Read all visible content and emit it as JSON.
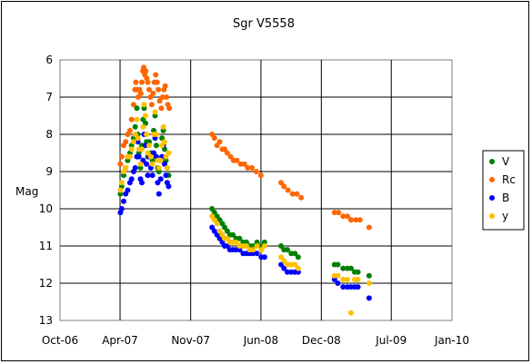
{
  "chart_data": {
    "type": "scatter",
    "title": "Sgr V5558",
    "xlabel": "",
    "ylabel": "Mag",
    "x_tick_labels": [
      "Oct-06",
      "Apr-07",
      "Nov-07",
      "Jun-08",
      "Dec-08",
      "Jul-09",
      "Jan-10"
    ],
    "x_ticks": [
      "2006-10-01",
      "2007-04-01",
      "2007-11-01",
      "2008-06-01",
      "2008-12-01",
      "2009-07-01",
      "2010-01-01"
    ],
    "xlim": [
      "2006-10-01",
      "2010-01-01"
    ],
    "y_tick_labels": [
      "6",
      "7",
      "8",
      "9",
      "10",
      "11",
      "12",
      "13"
    ],
    "ylim": [
      13,
      6
    ],
    "y_inverted": true,
    "grid": true,
    "legend_position": "right",
    "series": [
      {
        "name": "V",
        "color": "#008000",
        "points": [
          [
            "2007-04-02",
            9.6
          ],
          [
            "2007-04-06",
            9.4
          ],
          [
            "2007-04-12",
            9.1
          ],
          [
            "2007-04-18",
            8.9
          ],
          [
            "2007-04-24",
            8.7
          ],
          [
            "2007-05-01",
            8.5
          ],
          [
            "2007-05-06",
            8.3
          ],
          [
            "2007-05-12",
            8.1
          ],
          [
            "2007-05-17",
            7.8
          ],
          [
            "2007-05-22",
            7.3
          ],
          [
            "2007-05-25",
            8.0
          ],
          [
            "2007-05-28",
            8.5
          ],
          [
            "2007-06-02",
            8.9
          ],
          [
            "2007-06-06",
            8.3
          ],
          [
            "2007-06-10",
            7.6
          ],
          [
            "2007-06-13",
            7.3
          ],
          [
            "2007-06-17",
            7.7
          ],
          [
            "2007-06-20",
            8.2
          ],
          [
            "2007-06-24",
            8.6
          ],
          [
            "2007-06-28",
            8.2
          ],
          [
            "2007-07-03",
            8.5
          ],
          [
            "2007-07-08",
            8.7
          ],
          [
            "2007-07-12",
            7.9
          ],
          [
            "2007-07-16",
            7.5
          ],
          [
            "2007-07-20",
            8.3
          ],
          [
            "2007-07-24",
            8.9
          ],
          [
            "2007-07-28",
            9.0
          ],
          [
            "2007-08-02",
            8.7
          ],
          [
            "2007-08-06",
            8.1
          ],
          [
            "2007-08-10",
            7.9
          ],
          [
            "2007-08-14",
            8.4
          ],
          [
            "2007-08-18",
            8.7
          ],
          [
            "2007-08-22",
            8.9
          ],
          [
            "2007-08-26",
            9.1
          ],
          [
            "2008-01-05",
            10.0
          ],
          [
            "2008-01-12",
            10.1
          ],
          [
            "2008-01-20",
            10.2
          ],
          [
            "2008-01-28",
            10.3
          ],
          [
            "2008-02-05",
            10.4
          ],
          [
            "2008-02-12",
            10.5
          ],
          [
            "2008-02-20",
            10.6
          ],
          [
            "2008-02-28",
            10.7
          ],
          [
            "2008-03-08",
            10.7
          ],
          [
            "2008-03-18",
            10.8
          ],
          [
            "2008-03-28",
            10.8
          ],
          [
            "2008-04-08",
            10.9
          ],
          [
            "2008-04-18",
            10.9
          ],
          [
            "2008-04-28",
            11.0
          ],
          [
            "2008-05-08",
            11.0
          ],
          [
            "2008-05-20",
            10.9
          ],
          [
            "2008-06-02",
            11.0
          ],
          [
            "2008-06-12",
            10.9
          ],
          [
            "2008-08-01",
            11.0
          ],
          [
            "2008-08-10",
            11.1
          ],
          [
            "2008-08-20",
            11.1
          ],
          [
            "2008-09-01",
            11.2
          ],
          [
            "2008-09-12",
            11.2
          ],
          [
            "2008-09-22",
            11.3
          ],
          [
            "2009-01-10",
            11.5
          ],
          [
            "2009-01-20",
            11.5
          ],
          [
            "2009-02-05",
            11.6
          ],
          [
            "2009-02-18",
            11.6
          ],
          [
            "2009-03-01",
            11.6
          ],
          [
            "2009-03-12",
            11.7
          ],
          [
            "2009-03-22",
            11.7
          ],
          [
            "2009-04-25",
            11.8
          ]
        ]
      },
      {
        "name": "Rc",
        "color": "#ff6600",
        "points": [
          [
            "2007-04-02",
            8.8
          ],
          [
            "2007-04-06",
            8.6
          ],
          [
            "2007-04-12",
            8.3
          ],
          [
            "2007-04-18",
            8.2
          ],
          [
            "2007-04-24",
            8.0
          ],
          [
            "2007-05-01",
            7.9
          ],
          [
            "2007-05-06",
            7.6
          ],
          [
            "2007-05-12",
            7.2
          ],
          [
            "2007-05-16",
            6.8
          ],
          [
            "2007-05-19",
            6.6
          ],
          [
            "2007-05-22",
            6.8
          ],
          [
            "2007-05-26",
            7.0
          ],
          [
            "2007-05-30",
            6.8
          ],
          [
            "2007-06-03",
            6.9
          ],
          [
            "2007-06-06",
            6.6
          ],
          [
            "2007-06-09",
            6.3
          ],
          [
            "2007-06-12",
            6.2
          ],
          [
            "2007-06-15",
            6.4
          ],
          [
            "2007-06-18",
            6.3
          ],
          [
            "2007-06-21",
            6.5
          ],
          [
            "2007-06-24",
            6.6
          ],
          [
            "2007-06-28",
            6.8
          ],
          [
            "2007-07-02",
            7.0
          ],
          [
            "2007-07-06",
            7.2
          ],
          [
            "2007-07-10",
            6.9
          ],
          [
            "2007-07-14",
            6.6
          ],
          [
            "2007-07-18",
            6.4
          ],
          [
            "2007-07-22",
            6.6
          ],
          [
            "2007-07-26",
            6.8
          ],
          [
            "2007-07-30",
            7.1
          ],
          [
            "2007-08-04",
            7.3
          ],
          [
            "2007-08-08",
            7.0
          ],
          [
            "2007-08-12",
            6.8
          ],
          [
            "2007-08-16",
            6.7
          ],
          [
            "2007-08-20",
            7.0
          ],
          [
            "2007-08-24",
            7.2
          ],
          [
            "2007-08-28",
            7.3
          ],
          [
            "2008-01-05",
            8.0
          ],
          [
            "2008-01-12",
            8.1
          ],
          [
            "2008-01-20",
            8.3
          ],
          [
            "2008-01-28",
            8.2
          ],
          [
            "2008-02-05",
            8.4
          ],
          [
            "2008-02-12",
            8.4
          ],
          [
            "2008-02-20",
            8.5
          ],
          [
            "2008-03-01",
            8.6
          ],
          [
            "2008-03-10",
            8.7
          ],
          [
            "2008-03-20",
            8.7
          ],
          [
            "2008-04-01",
            8.8
          ],
          [
            "2008-04-12",
            8.8
          ],
          [
            "2008-04-22",
            8.9
          ],
          [
            "2008-05-05",
            8.9
          ],
          [
            "2008-05-18",
            9.0
          ],
          [
            "2008-06-01",
            9.1
          ],
          [
            "2008-08-01",
            9.3
          ],
          [
            "2008-08-10",
            9.4
          ],
          [
            "2008-08-22",
            9.5
          ],
          [
            "2008-09-05",
            9.6
          ],
          [
            "2008-09-18",
            9.6
          ],
          [
            "2008-10-01",
            9.7
          ],
          [
            "2009-01-10",
            10.1
          ],
          [
            "2009-01-22",
            10.1
          ],
          [
            "2009-02-05",
            10.2
          ],
          [
            "2009-02-18",
            10.2
          ],
          [
            "2009-03-01",
            10.3
          ],
          [
            "2009-03-15",
            10.3
          ],
          [
            "2009-03-28",
            10.3
          ],
          [
            "2009-04-25",
            10.5
          ]
        ]
      },
      {
        "name": "B",
        "color": "#0000ff",
        "points": [
          [
            "2007-04-02",
            10.1
          ],
          [
            "2007-04-06",
            10.0
          ],
          [
            "2007-04-12",
            9.8
          ],
          [
            "2007-04-18",
            9.6
          ],
          [
            "2007-04-24",
            9.5
          ],
          [
            "2007-05-01",
            9.3
          ],
          [
            "2007-05-06",
            9.2
          ],
          [
            "2007-05-12",
            9.0
          ],
          [
            "2007-05-17",
            8.9
          ],
          [
            "2007-05-22",
            8.6
          ],
          [
            "2007-05-25",
            8.2
          ],
          [
            "2007-05-28",
            8.6
          ],
          [
            "2007-06-02",
            9.2
          ],
          [
            "2007-06-06",
            9.3
          ],
          [
            "2007-06-10",
            8.7
          ],
          [
            "2007-06-13",
            8.0
          ],
          [
            "2007-06-17",
            8.3
          ],
          [
            "2007-06-20",
            8.8
          ],
          [
            "2007-06-24",
            9.1
          ],
          [
            "2007-06-28",
            8.6
          ],
          [
            "2007-07-03",
            8.9
          ],
          [
            "2007-07-08",
            9.1
          ],
          [
            "2007-07-12",
            8.5
          ],
          [
            "2007-07-16",
            8.1
          ],
          [
            "2007-07-20",
            8.6
          ],
          [
            "2007-07-24",
            9.3
          ],
          [
            "2007-07-28",
            9.6
          ],
          [
            "2007-08-02",
            9.2
          ],
          [
            "2007-08-06",
            8.6
          ],
          [
            "2007-08-10",
            8.3
          ],
          [
            "2007-08-14",
            8.8
          ],
          [
            "2007-08-18",
            9.1
          ],
          [
            "2007-08-22",
            9.3
          ],
          [
            "2007-08-26",
            9.4
          ],
          [
            "2008-01-05",
            10.5
          ],
          [
            "2008-01-12",
            10.6
          ],
          [
            "2008-01-20",
            10.7
          ],
          [
            "2008-01-28",
            10.8
          ],
          [
            "2008-02-05",
            10.9
          ],
          [
            "2008-02-12",
            11.0
          ],
          [
            "2008-02-20",
            11.0
          ],
          [
            "2008-02-28",
            11.1
          ],
          [
            "2008-03-08",
            11.1
          ],
          [
            "2008-03-18",
            11.1
          ],
          [
            "2008-03-28",
            11.1
          ],
          [
            "2008-04-08",
            11.2
          ],
          [
            "2008-04-18",
            11.2
          ],
          [
            "2008-04-28",
            11.2
          ],
          [
            "2008-05-08",
            11.2
          ],
          [
            "2008-05-20",
            11.2
          ],
          [
            "2008-06-02",
            11.3
          ],
          [
            "2008-06-12",
            11.3
          ],
          [
            "2008-08-01",
            11.5
          ],
          [
            "2008-08-10",
            11.6
          ],
          [
            "2008-08-20",
            11.7
          ],
          [
            "2008-09-01",
            11.7
          ],
          [
            "2008-09-12",
            11.7
          ],
          [
            "2008-09-22",
            11.7
          ],
          [
            "2009-01-10",
            11.9
          ],
          [
            "2009-01-20",
            12.0
          ],
          [
            "2009-02-05",
            12.1
          ],
          [
            "2009-02-18",
            12.1
          ],
          [
            "2009-03-01",
            12.1
          ],
          [
            "2009-03-12",
            12.1
          ],
          [
            "2009-03-22",
            12.1
          ],
          [
            "2009-04-25",
            12.4
          ]
        ]
      },
      {
        "name": "y",
        "color": "#ffc000",
        "points": [
          [
            "2007-04-02",
            9.5
          ],
          [
            "2007-04-06",
            9.3
          ],
          [
            "2007-04-12",
            9.0
          ],
          [
            "2007-04-18",
            8.9
          ],
          [
            "2007-04-24",
            8.6
          ],
          [
            "2007-05-01",
            8.6
          ],
          [
            "2007-05-06",
            8.4
          ],
          [
            "2007-05-12",
            8.2
          ],
          [
            "2007-05-17",
            8.0
          ],
          [
            "2007-05-22",
            7.6
          ],
          [
            "2007-05-25",
            8.1
          ],
          [
            "2007-05-28",
            8.4
          ],
          [
            "2007-06-02",
            8.8
          ],
          [
            "2007-06-06",
            8.4
          ],
          [
            "2007-06-10",
            7.8
          ],
          [
            "2007-06-13",
            7.2
          ],
          [
            "2007-06-17",
            7.5
          ],
          [
            "2007-06-20",
            8.0
          ],
          [
            "2007-06-24",
            8.5
          ],
          [
            "2007-06-28",
            8.3
          ],
          [
            "2007-07-03",
            8.6
          ],
          [
            "2007-07-08",
            8.8
          ],
          [
            "2007-07-12",
            8.0
          ],
          [
            "2007-07-16",
            7.4
          ],
          [
            "2007-07-20",
            8.0
          ],
          [
            "2007-07-24",
            8.7
          ],
          [
            "2007-07-28",
            8.9
          ],
          [
            "2007-08-02",
            8.7
          ],
          [
            "2007-08-06",
            8.3
          ],
          [
            "2007-08-10",
            7.8
          ],
          [
            "2007-08-14",
            8.2
          ],
          [
            "2007-08-18",
            8.6
          ],
          [
            "2007-08-22",
            8.9
          ],
          [
            "2007-08-26",
            8.5
          ],
          [
            "2008-01-05",
            10.2
          ],
          [
            "2008-01-12",
            10.3
          ],
          [
            "2008-01-20",
            10.4
          ],
          [
            "2008-01-28",
            10.6
          ],
          [
            "2008-02-05",
            10.7
          ],
          [
            "2008-02-12",
            10.8
          ],
          [
            "2008-02-20",
            10.8
          ],
          [
            "2008-02-28",
            10.9
          ],
          [
            "2008-03-08",
            10.9
          ],
          [
            "2008-03-18",
            10.9
          ],
          [
            "2008-03-28",
            11.0
          ],
          [
            "2008-04-08",
            11.0
          ],
          [
            "2008-04-18",
            11.0
          ],
          [
            "2008-04-28",
            11.1
          ],
          [
            "2008-05-08",
            11.1
          ],
          [
            "2008-05-20",
            11.0
          ],
          [
            "2008-06-02",
            11.1
          ],
          [
            "2008-06-12",
            11.0
          ],
          [
            "2008-08-01",
            11.3
          ],
          [
            "2008-08-10",
            11.4
          ],
          [
            "2008-08-20",
            11.5
          ],
          [
            "2008-09-01",
            11.5
          ],
          [
            "2008-09-12",
            11.5
          ],
          [
            "2008-09-22",
            11.6
          ],
          [
            "2009-01-10",
            11.8
          ],
          [
            "2009-01-20",
            11.8
          ],
          [
            "2009-02-05",
            11.9
          ],
          [
            "2009-02-18",
            11.9
          ],
          [
            "2009-03-01",
            12.8
          ],
          [
            "2009-03-12",
            11.9
          ],
          [
            "2009-03-22",
            11.9
          ],
          [
            "2009-04-25",
            12.0
          ]
        ]
      }
    ]
  }
}
